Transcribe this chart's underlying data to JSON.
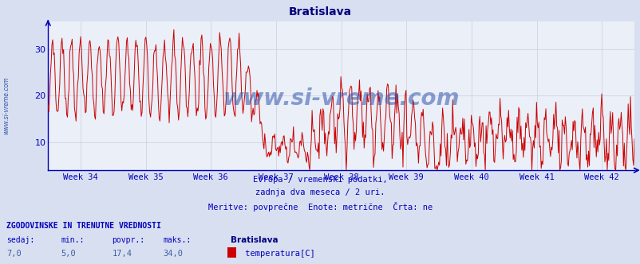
{
  "title": "Bratislava",
  "title_color": "#000080",
  "bg_color": "#d8dff0",
  "plot_bg_color": "#eaeff8",
  "line_color": "#cc0000",
  "axis_color": "#0000bb",
  "grid_color": "#c8cfe0",
  "watermark_color": "#4060a0",
  "ylabel_ticks": [
    10,
    20,
    30
  ],
  "ymin": 4,
  "ymax": 36,
  "xticklabels": [
    "Week 34",
    "Week 35",
    "Week 36",
    "Week 37",
    "Week 38",
    "Week 39",
    "Week 40",
    "Week 41",
    "Week 42"
  ],
  "subtitle1": "Evropa / vremenski podatki,",
  "subtitle2": "zadnja dva meseca / 2 uri.",
  "subtitle3": "Meritve: povprečne  Enote: metrične  Črta: ne",
  "footer_title": "ZGODOVINSKE IN TRENUTNE VREDNOSTI",
  "footer_labels": [
    "sedaj:",
    "min.:",
    "povpr.:",
    "maks.:"
  ],
  "footer_values": [
    "7,0",
    "5,0",
    "17,4",
    "34,0"
  ],
  "footer_series_name": "Bratislava",
  "footer_series_label": " temperatura[C]",
  "footer_series_color": "#cc0000",
  "watermark": "www.si-vreme.com",
  "left_label": "www.si-vreme.com"
}
